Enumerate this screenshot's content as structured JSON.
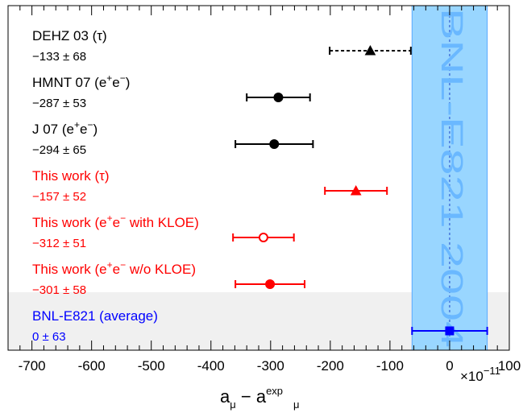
{
  "chart_data": {
    "type": "scatter",
    "xlim": [
      -740,
      100
    ],
    "x_ticks": [
      -700,
      -600,
      -500,
      -400,
      -300,
      -200,
      -100,
      0,
      100
    ],
    "x_tick_labels": [
      "-700",
      "-600",
      "-500",
      "-400",
      "-300",
      "-200",
      "-100",
      "0",
      "100"
    ],
    "xlabel_main": "a",
    "xlabel_sub": "μ",
    "xlabel_sep": "−",
    "xlabel_sup": "exp",
    "scale_times": "×",
    "scale_base": "10",
    "scale_exp": "−11",
    "band": {
      "center": 0,
      "halfwidth": 63,
      "color": "#99d6ff",
      "label": "BNL-E821 2004"
    },
    "entries": [
      {
        "label": "DEHZ 03 (τ)",
        "value_label": "−133 ± 68",
        "value": -133,
        "err": 68,
        "marker": "triangle",
        "filled": true,
        "color": "#000000",
        "dashed": true
      },
      {
        "label": "HMNT 07 (e⁺e⁻)",
        "value_label": "−287 ± 53",
        "value": -287,
        "err": 53,
        "marker": "circle",
        "filled": true,
        "color": "#000000",
        "dashed": false
      },
      {
        "label": "J 07 (e⁺e⁻)",
        "value_label": "−294 ± 65",
        "value": -294,
        "err": 65,
        "marker": "circle",
        "filled": true,
        "color": "#000000",
        "dashed": false
      },
      {
        "label": "This work (τ)",
        "value_label": "−157 ± 52",
        "value": -157,
        "err": 52,
        "marker": "triangle",
        "filled": true,
        "color": "#ff0000",
        "dashed": false
      },
      {
        "label": "This work (e⁺e⁻ with KLOE)",
        "value_label": "−312 ± 51",
        "value": -312,
        "err": 51,
        "marker": "circle",
        "filled": false,
        "color": "#ff0000",
        "dashed": false
      },
      {
        "label": "This work (e⁺e⁻ w/o KLOE)",
        "value_label": "−301 ± 58",
        "value": -301,
        "err": 58,
        "marker": "circle",
        "filled": true,
        "color": "#ff0000",
        "dashed": false
      },
      {
        "label": "BNL-E821 (average)",
        "value_label": "0 ± 63",
        "value": 0,
        "err": 63,
        "marker": "square",
        "filled": true,
        "color": "#0000ff",
        "dashed": false
      }
    ]
  }
}
